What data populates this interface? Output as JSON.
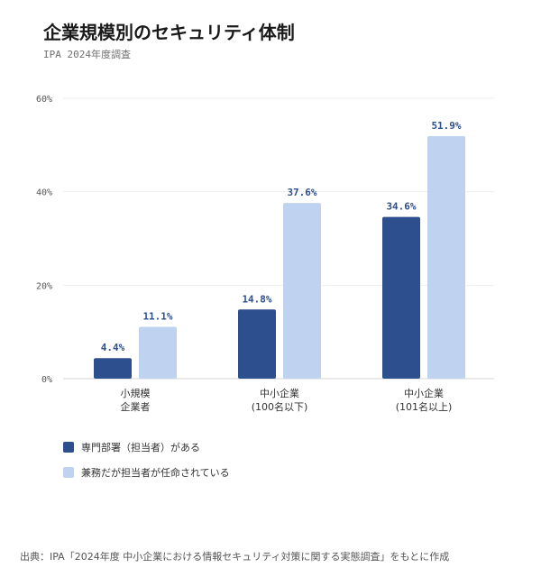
{
  "header": {
    "title": "企業規模別のセキュリティ体制",
    "subtitle": "IPA 2024年度調査"
  },
  "colors": {
    "dark_series": "#2d4f8e",
    "light_series": "#bfd3f0",
    "grid": "#eeeeee",
    "axis_text": "#555555"
  },
  "chart_data": {
    "type": "bar",
    "title": "企業規模別のセキュリティ体制",
    "subtitle": "IPA 2024年度調査",
    "categories": [
      [
        "小規模",
        "企業者"
      ],
      [
        "中小企業",
        "(100名以下)"
      ],
      [
        "中小企業",
        "(101名以上)"
      ]
    ],
    "series": [
      {
        "name": "専門部署（担当者）がある",
        "values": [
          4.4,
          14.8,
          34.6
        ],
        "labels": [
          "4.4%",
          "14.8%",
          "34.6%"
        ],
        "color": "#2d4f8e"
      },
      {
        "name": "兼務だが担当者が任命されている",
        "values": [
          11.1,
          37.6,
          51.9
        ],
        "labels": [
          "11.1%",
          "37.6%",
          "51.9%"
        ],
        "color": "#bfd3f0"
      }
    ],
    "ylim": [
      0,
      60
    ],
    "yticks": [
      0,
      20,
      40,
      60
    ],
    "ytick_labels": [
      "0%",
      "20%",
      "40%",
      "60%"
    ],
    "grid": true,
    "legend_position": "bottom-left"
  },
  "source_note": "出典：IPA「2024年度 中小企業における情報セキュリティ対策に関する実態調査」をもとに作成"
}
